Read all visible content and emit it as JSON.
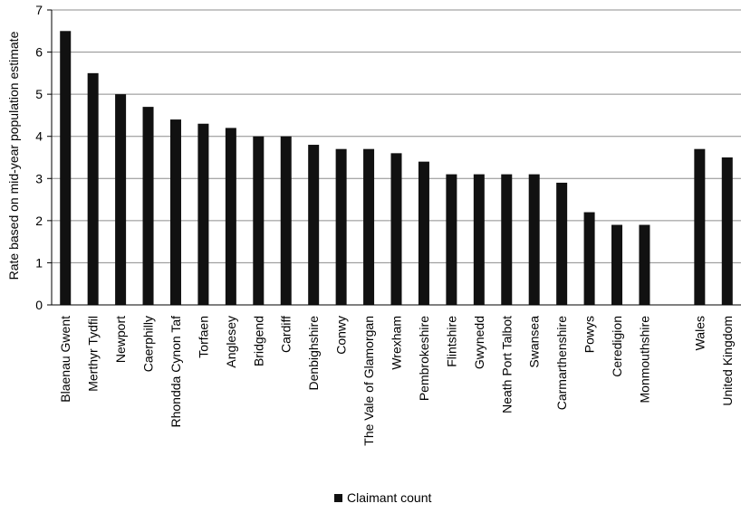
{
  "chart_data": {
    "type": "bar",
    "ylabel": "Rate based on mid-year population estimate",
    "xlabel": "",
    "ylim": [
      0,
      7
    ],
    "yticks": [
      "0",
      "1",
      "2",
      "3",
      "4",
      "5",
      "6",
      "7"
    ],
    "grid": true,
    "legend_position": "bottom-center",
    "bar_color": "#111111",
    "categories": [
      "Blaenau Gwent",
      "Merthyr Tydfil",
      "Newport",
      "Caerphilly",
      "Rhondda Cynon Taf",
      "Torfaen",
      "Anglesey",
      "Bridgend",
      "Cardiff",
      "Denbighshire",
      "Conwy",
      "The Vale of Glamorgan",
      "Wrexham",
      "Pembrokeshire",
      "Flintshire",
      "Gwynedd",
      "Neath Port Talbot",
      "Swansea",
      "Carmarthenshire",
      "Powys",
      "Ceredigion",
      "Monmouthshire",
      "",
      "Wales",
      "United Kingdom"
    ],
    "series": [
      {
        "name": "Claimant count",
        "values": [
          6.5,
          5.5,
          5.0,
          4.7,
          4.4,
          4.3,
          4.2,
          4.0,
          4.0,
          3.8,
          3.7,
          3.7,
          3.6,
          3.4,
          3.1,
          3.1,
          3.1,
          3.1,
          2.9,
          2.2,
          1.9,
          1.9,
          null,
          3.7,
          3.5
        ]
      }
    ]
  }
}
